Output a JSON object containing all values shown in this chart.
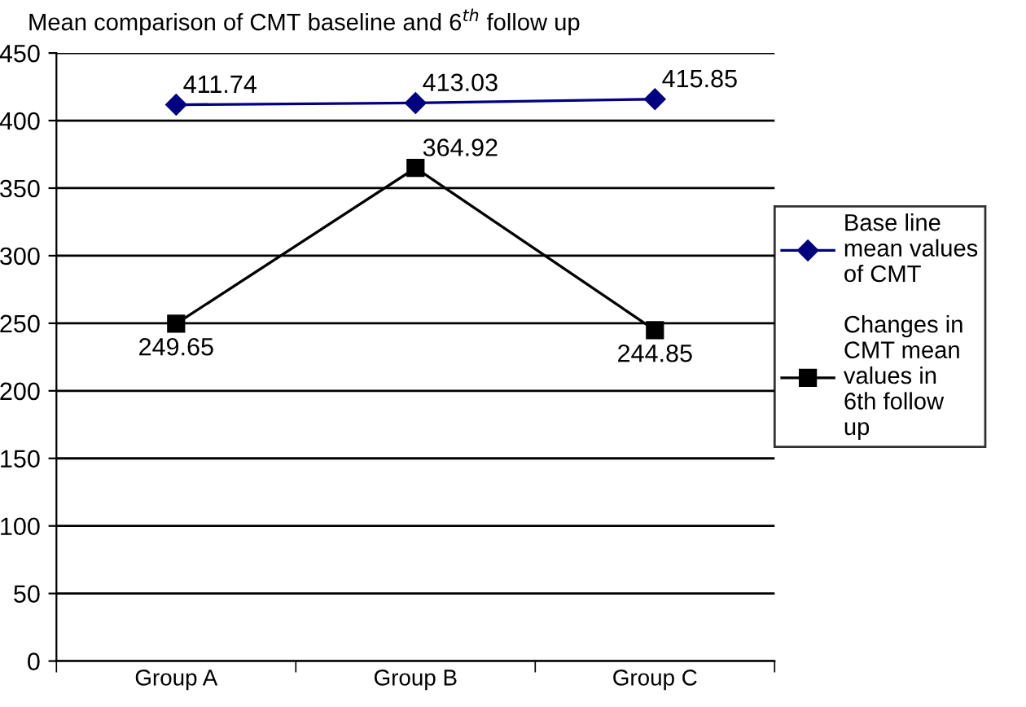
{
  "chart_data": {
    "type": "line",
    "title": "Mean comparison of CMT baseline and 6$^{th}$ follow up",
    "categories": [
      "Group A",
      "Group B",
      "Group C"
    ],
    "series": [
      {
        "name": "Base line mean values of CMT",
        "color": "#000080",
        "marker": "diamond",
        "values": [
          411.74,
          413.03,
          415.85
        ]
      },
      {
        "name": "Changes in CMT mean values in 6th follow up",
        "color": "#000000",
        "marker": "square",
        "values": [
          249.65,
          364.92,
          244.85
        ]
      }
    ],
    "ylim": [
      0,
      450
    ],
    "yticks": [
      0,
      50,
      100,
      150,
      200,
      250,
      300,
      350,
      400,
      450
    ],
    "grid": "y",
    "legend": "right",
    "data_labels": true,
    "line_style": "solid"
  }
}
